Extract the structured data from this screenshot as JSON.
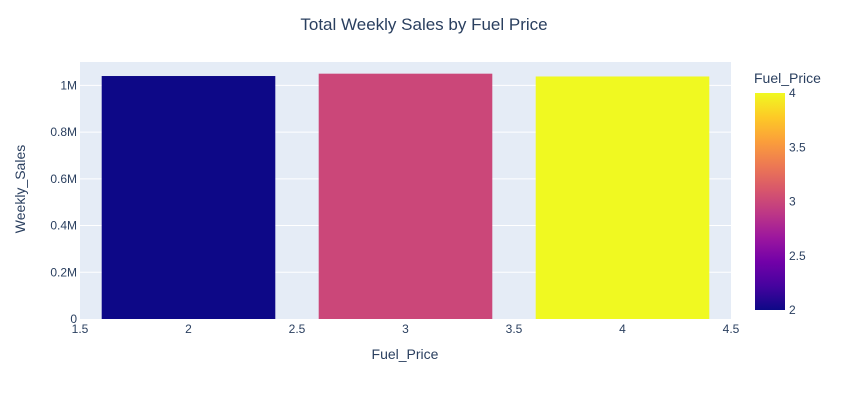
{
  "chart_data": {
    "type": "bar",
    "title": "Total Weekly Sales by Fuel Price",
    "xlabel": "Fuel_Price",
    "ylabel": "Weekly_Sales",
    "x": [
      2,
      3,
      4
    ],
    "values": [
      1040000,
      1050000,
      1038000
    ],
    "bar_width": 0.8,
    "xlim": [
      1.5,
      4.5
    ],
    "ylim": [
      0,
      1100000
    ],
    "x_ticks": [
      1.5,
      2,
      2.5,
      3,
      3.5,
      4,
      4.5
    ],
    "x_tick_labels": [
      "1.5",
      "2",
      "2.5",
      "3",
      "3.5",
      "4",
      "4.5"
    ],
    "y_ticks": [
      0,
      200000,
      400000,
      600000,
      800000,
      1000000
    ],
    "y_tick_labels": [
      "0",
      "0.2M",
      "0.4M",
      "0.6M",
      "0.8M",
      "1M"
    ],
    "grid": true,
    "background_color": "#e5ecf6",
    "colorscale": [
      "#0d0887",
      "#46039f",
      "#7201a8",
      "#9c179e",
      "#bd3786",
      "#d8576b",
      "#ed7953",
      "#fb9f3a",
      "#fdca26",
      "#f0f921"
    ],
    "colorbar": {
      "title": "Fuel_Price",
      "min": 2,
      "max": 4,
      "ticks": [
        2,
        2.5,
        3,
        3.5,
        4
      ],
      "tick_labels": [
        "2",
        "2.5",
        "3",
        "3.5",
        "4"
      ]
    }
  }
}
